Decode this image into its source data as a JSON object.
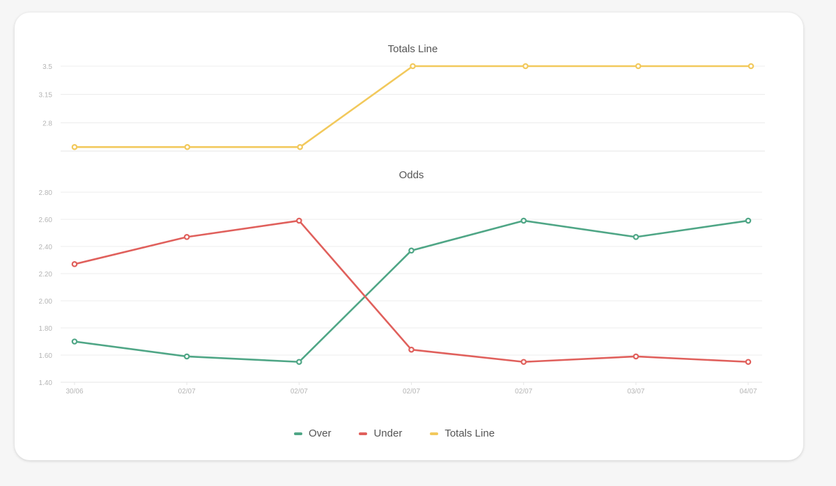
{
  "chart_data": [
    {
      "type": "line",
      "title": "Totals Line",
      "xlabel": "",
      "ylabel": "",
      "ylim": [
        2.45,
        3.5
      ],
      "yticks": [
        "2.8",
        "3.15",
        "3.5"
      ],
      "categories": [
        "30/06",
        "02/07",
        "02/07",
        "02/07",
        "02/07",
        "03/07",
        "04/07"
      ],
      "show_x_labels": false,
      "grid": true,
      "series": [
        {
          "name": "Totals Line",
          "color": "#f2c95c",
          "values": [
            2.5,
            2.5,
            2.5,
            3.5,
            3.5,
            3.5,
            3.5
          ]
        }
      ]
    },
    {
      "type": "line",
      "title": "Odds",
      "xlabel": "",
      "ylabel": "",
      "ylim": [
        1.4,
        2.8
      ],
      "yticks": [
        "1.40",
        "1.60",
        "1.80",
        "2.00",
        "2.20",
        "2.40",
        "2.60",
        "2.80"
      ],
      "categories": [
        "30/06",
        "02/07",
        "02/07",
        "02/07",
        "02/07",
        "03/07",
        "04/07"
      ],
      "show_x_labels": true,
      "grid": true,
      "series": [
        {
          "name": "Over",
          "color": "#4fa686",
          "values": [
            1.7,
            1.59,
            1.55,
            2.37,
            2.59,
            2.47,
            2.59
          ]
        },
        {
          "name": "Under",
          "color": "#e0605c",
          "values": [
            2.27,
            2.47,
            2.59,
            1.64,
            1.55,
            1.59,
            1.55
          ]
        }
      ]
    }
  ],
  "legend": [
    {
      "label": "Over",
      "color": "#4fa686"
    },
    {
      "label": "Under",
      "color": "#e0605c"
    },
    {
      "label": "Totals Line",
      "color": "#f2c95c"
    }
  ]
}
